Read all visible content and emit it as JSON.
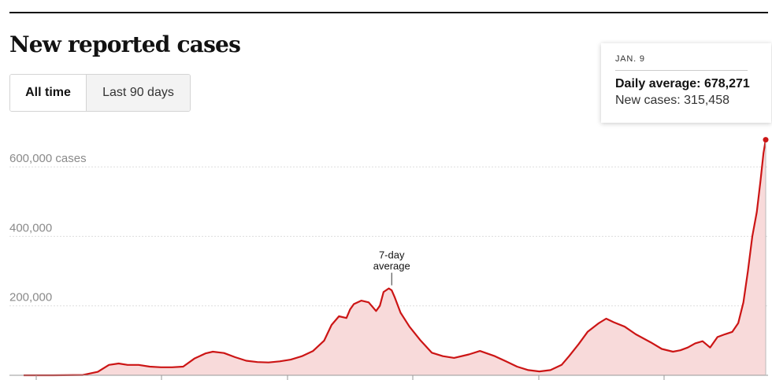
{
  "title": "New reported cases",
  "toggle": {
    "all_time": "All time",
    "last_90": "Last 90 days"
  },
  "tooltip": {
    "date": "JAN. 9",
    "daily_average_label": "Daily average:",
    "daily_average_value": "678,271",
    "new_cases_label": "New cases:",
    "new_cases_value": "315,458"
  },
  "colors": {
    "line": "#cc1515",
    "fill": "#f8dada",
    "grid": "#dddddd",
    "axis": "#999999"
  },
  "chart_data": {
    "type": "area",
    "title": "New reported cases",
    "ylim": [
      0,
      700000
    ],
    "y_ticks": [
      {
        "value": 200000,
        "label": "200,000"
      },
      {
        "value": 400000,
        "label": "400,000"
      },
      {
        "value": 600000,
        "label": "600,000 cases"
      }
    ],
    "annotation": {
      "line1": "7-day",
      "line2": "average",
      "x": 0.496,
      "y": 250000
    },
    "highlight_point": {
      "x": 1.0,
      "y": 678271
    },
    "series": [
      {
        "name": "7-day average",
        "x": [
          0,
          0.04,
          0.08,
          0.1,
          0.115,
          0.128,
          0.14,
          0.155,
          0.17,
          0.185,
          0.2,
          0.215,
          0.23,
          0.245,
          0.255,
          0.27,
          0.285,
          0.3,
          0.315,
          0.33,
          0.345,
          0.36,
          0.375,
          0.39,
          0.405,
          0.415,
          0.425,
          0.435,
          0.44,
          0.445,
          0.455,
          0.465,
          0.475,
          0.48,
          0.485,
          0.492,
          0.496,
          0.5,
          0.508,
          0.52,
          0.535,
          0.55,
          0.565,
          0.58,
          0.6,
          0.615,
          0.635,
          0.65,
          0.665,
          0.68,
          0.695,
          0.71,
          0.725,
          0.735,
          0.748,
          0.76,
          0.775,
          0.785,
          0.795,
          0.81,
          0.825,
          0.845,
          0.86,
          0.875,
          0.885,
          0.895,
          0.905,
          0.915,
          0.925,
          0.935,
          0.945,
          0.955,
          0.963,
          0.97,
          0.976,
          0.982,
          0.988,
          0.993,
          0.997,
          1.0
        ],
        "y": [
          0,
          0,
          1000,
          10000,
          30000,
          34000,
          30000,
          30000,
          25000,
          23000,
          23000,
          25000,
          48000,
          63000,
          68000,
          64000,
          52000,
          42000,
          38000,
          37000,
          40000,
          45000,
          55000,
          70000,
          100000,
          145000,
          170000,
          165000,
          190000,
          205000,
          215000,
          210000,
          185000,
          200000,
          240000,
          250000,
          245000,
          225000,
          180000,
          140000,
          100000,
          65000,
          55000,
          50000,
          60000,
          70000,
          55000,
          40000,
          25000,
          15000,
          11000,
          15000,
          30000,
          55000,
          90000,
          125000,
          150000,
          163000,
          153000,
          140000,
          118000,
          95000,
          76000,
          68000,
          72000,
          80000,
          92000,
          98000,
          80000,
          110000,
          118000,
          125000,
          150000,
          210000,
          300000,
          400000,
          470000,
          560000,
          640000,
          678271
        ]
      }
    ]
  }
}
